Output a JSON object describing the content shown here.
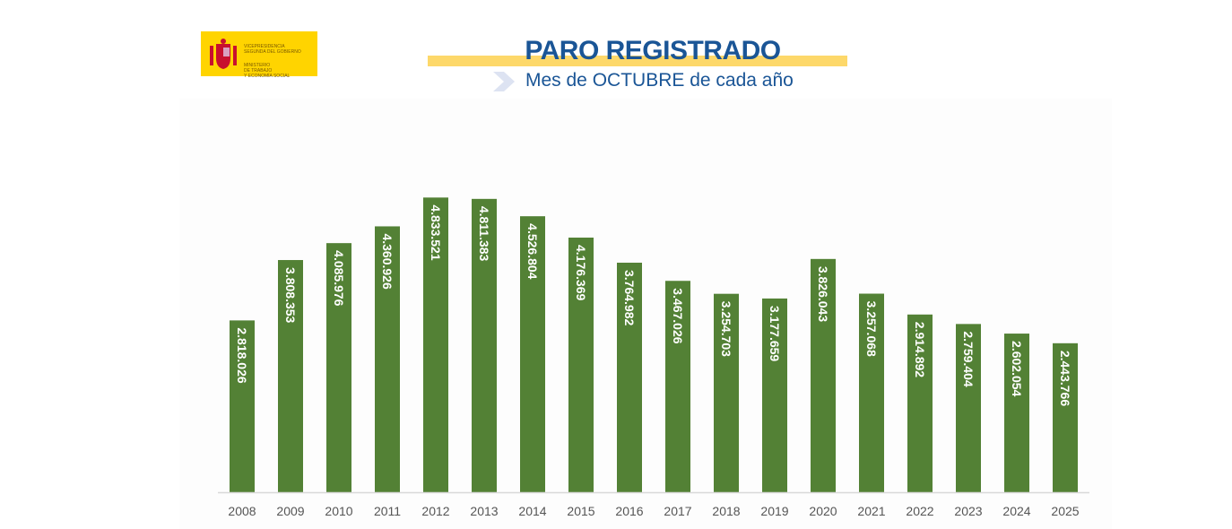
{
  "logo": {
    "line1": "VICEPRESIDENCIA\nSEGUNDA DEL GOBIERNO",
    "line2": "MINISTERIO\nDE TRABAJO\nY ECONOMÍA SOCIAL"
  },
  "header": {
    "title": "PARO REGISTRADO",
    "subtitle": "Mes de OCTUBRE de cada año"
  },
  "colors": {
    "bar": "#538135",
    "title": "#1a5596",
    "band": "#fdd86a",
    "logo_bg": "#ffd400"
  },
  "chart_data": {
    "type": "bar",
    "title": "PARO REGISTRADO",
    "subtitle": "Mes de OCTUBRE de cada año",
    "categories": [
      "2008",
      "2009",
      "2010",
      "2011",
      "2012",
      "2013",
      "2014",
      "2015",
      "2016",
      "2017",
      "2018",
      "2019",
      "2020",
      "2021",
      "2022",
      "2023",
      "2024",
      "2025"
    ],
    "values": [
      2818026,
      3808353,
      4085976,
      4360926,
      4833521,
      4811383,
      4526804,
      4176369,
      3764982,
      3467026,
      3254703,
      3177659,
      3826043,
      3257068,
      2914892,
      2759404,
      2602054,
      2443766
    ],
    "labels": [
      "2.818.026",
      "3.808.353",
      "4.085.976",
      "4.360.926",
      "4.833.521",
      "4.811.383",
      "4.526.804",
      "4.176.369",
      "3.764.982",
      "3.467.026",
      "3.254.703",
      "3.177.659",
      "3.826.043",
      "3.257.068",
      "2.914.892",
      "2.759.404",
      "2.602.054",
      "2.443.766"
    ],
    "ylim": [
      0,
      5000000
    ],
    "grid": false,
    "legend": "none",
    "data_labels": "inside-vertical"
  }
}
